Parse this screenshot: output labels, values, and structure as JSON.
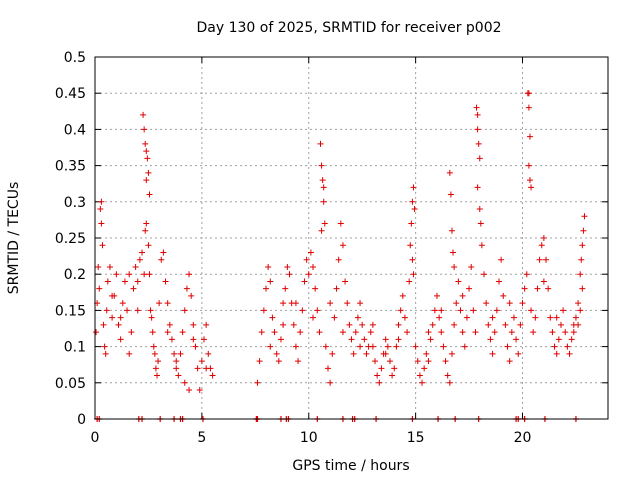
{
  "chart_data": {
    "type": "scatter",
    "title": "Day 130 of 2025, SRMTID for receiver p002",
    "xlabel": "GPS time / hours",
    "ylabel": "SRMTID / TECUs",
    "xlim": [
      0,
      24
    ],
    "ylim": [
      0,
      0.5
    ],
    "x_ticks": [
      0,
      5,
      10,
      15,
      20
    ],
    "x_tick_labels": [
      "0",
      "5",
      "10",
      "15",
      "20"
    ],
    "y_ticks": [
      0,
      0.05,
      0.1,
      0.15,
      0.2,
      0.25,
      0.3,
      0.35,
      0.4,
      0.45,
      0.5
    ],
    "y_tick_labels": [
      "0",
      "0.05",
      "0.1",
      "0.15",
      "0.2",
      "0.25",
      "0.3",
      "0.35",
      "0.4",
      "0.45",
      "0.5"
    ],
    "grid": true,
    "marker": "plus",
    "series_color": "#e00000",
    "series": [
      {
        "name": "SRMTID",
        "points": [
          [
            0.05,
            0.12
          ],
          [
            0.1,
            0.16
          ],
          [
            0.15,
            0.21
          ],
          [
            0.2,
            0.18
          ],
          [
            0.25,
            0.29
          ],
          [
            0.3,
            0.3
          ],
          [
            0.3,
            0.27
          ],
          [
            0.35,
            0.24
          ],
          [
            0.4,
            0.13
          ],
          [
            0.45,
            0.1
          ],
          [
            0.5,
            0.09
          ],
          [
            0.55,
            0.15
          ],
          [
            0.6,
            0.19
          ],
          [
            0.7,
            0.21
          ],
          [
            0.8,
            0.14
          ],
          [
            0.9,
            0.17
          ],
          [
            1.0,
            0.2
          ],
          [
            1.1,
            0.13
          ],
          [
            1.2,
            0.11
          ],
          [
            1.3,
            0.16
          ],
          [
            1.4,
            0.19
          ],
          [
            1.5,
            0.15
          ],
          [
            1.6,
            0.09
          ],
          [
            1.7,
            0.12
          ],
          [
            1.8,
            0.18
          ],
          [
            1.9,
            0.21
          ],
          [
            2.0,
            0.15
          ],
          [
            2.1,
            0.22
          ],
          [
            2.2,
            0.23
          ],
          [
            2.3,
            0.2
          ],
          [
            2.35,
            0.26
          ],
          [
            2.4,
            0.27
          ],
          [
            2.5,
            0.24
          ],
          [
            2.55,
            0.2
          ],
          [
            2.6,
            0.15
          ],
          [
            2.65,
            0.14
          ],
          [
            2.7,
            0.12
          ],
          [
            2.75,
            0.1
          ],
          [
            2.8,
            0.09
          ],
          [
            2.85,
            0.07
          ],
          [
            2.25,
            0.42
          ],
          [
            2.3,
            0.4
          ],
          [
            2.35,
            0.38
          ],
          [
            2.4,
            0.37
          ],
          [
            2.45,
            0.36
          ],
          [
            2.5,
            0.34
          ],
          [
            2.55,
            0.31
          ],
          [
            2.4,
            0.33
          ],
          [
            2.9,
            0.06
          ],
          [
            2.95,
            0.08
          ],
          [
            3.0,
            0.16
          ],
          [
            3.1,
            0.22
          ],
          [
            3.2,
            0.23
          ],
          [
            3.3,
            0.19
          ],
          [
            3.4,
            0.16
          ],
          [
            3.5,
            0.13
          ],
          [
            3.6,
            0.11
          ],
          [
            3.7,
            0.09
          ],
          [
            3.8,
            0.07
          ],
          [
            3.9,
            0.06
          ],
          [
            4.0,
            0.09
          ],
          [
            4.1,
            0.12
          ],
          [
            4.2,
            0.15
          ],
          [
            4.3,
            0.18
          ],
          [
            4.4,
            0.2
          ],
          [
            4.5,
            0.17
          ],
          [
            4.6,
            0.13
          ],
          [
            4.7,
            0.1
          ],
          [
            4.8,
            0.07
          ],
          [
            4.9,
            0.04
          ],
          [
            5.0,
            0.08
          ],
          [
            5.1,
            0.11
          ],
          [
            5.2,
            0.13
          ],
          [
            5.3,
            0.09
          ],
          [
            5.4,
            0.07
          ],
          [
            5.5,
            0.06
          ],
          [
            4.2,
            0.05
          ],
          [
            4.4,
            0.04
          ],
          [
            7.6,
            0.05
          ],
          [
            7.7,
            0.08
          ],
          [
            7.8,
            0.12
          ],
          [
            7.9,
            0.15
          ],
          [
            8.0,
            0.18
          ],
          [
            8.1,
            0.21
          ],
          [
            8.2,
            0.19
          ],
          [
            8.3,
            0.14
          ],
          [
            8.4,
            0.12
          ],
          [
            8.5,
            0.09
          ],
          [
            8.6,
            0.08
          ],
          [
            8.7,
            0.11
          ],
          [
            8.8,
            0.16
          ],
          [
            8.9,
            0.18
          ],
          [
            9.0,
            0.21
          ],
          [
            9.1,
            0.2
          ],
          [
            9.2,
            0.16
          ],
          [
            9.3,
            0.13
          ],
          [
            9.4,
            0.1
          ],
          [
            9.5,
            0.08
          ],
          [
            9.6,
            0.12
          ],
          [
            9.7,
            0.15
          ],
          [
            9.8,
            0.19
          ],
          [
            9.9,
            0.22
          ],
          [
            10.0,
            0.2
          ],
          [
            10.1,
            0.23
          ],
          [
            10.2,
            0.21
          ],
          [
            10.3,
            0.18
          ],
          [
            10.4,
            0.15
          ],
          [
            10.5,
            0.12
          ],
          [
            10.55,
            0.38
          ],
          [
            10.6,
            0.35
          ],
          [
            10.65,
            0.33
          ],
          [
            10.7,
            0.3
          ],
          [
            10.75,
            0.27
          ],
          [
            10.6,
            0.26
          ],
          [
            10.7,
            0.32
          ],
          [
            10.8,
            0.1
          ],
          [
            10.9,
            0.07
          ],
          [
            11.0,
            0.05
          ],
          [
            11.1,
            0.09
          ],
          [
            11.2,
            0.14
          ],
          [
            11.3,
            0.18
          ],
          [
            11.4,
            0.22
          ],
          [
            11.5,
            0.27
          ],
          [
            11.6,
            0.24
          ],
          [
            11.7,
            0.19
          ],
          [
            11.8,
            0.16
          ],
          [
            11.9,
            0.13
          ],
          [
            12.0,
            0.11
          ],
          [
            12.1,
            0.09
          ],
          [
            12.2,
            0.12
          ],
          [
            12.3,
            0.14
          ],
          [
            12.4,
            0.16
          ],
          [
            12.5,
            0.13
          ],
          [
            12.6,
            0.11
          ],
          [
            12.7,
            0.09
          ],
          [
            12.8,
            0.1
          ],
          [
            12.9,
            0.12
          ],
          [
            13.0,
            0.1
          ],
          [
            13.1,
            0.08
          ],
          [
            13.2,
            0.06
          ],
          [
            13.3,
            0.05
          ],
          [
            13.4,
            0.07
          ],
          [
            13.5,
            0.09
          ],
          [
            13.6,
            0.11
          ],
          [
            13.7,
            0.1
          ],
          [
            13.8,
            0.08
          ],
          [
            13.9,
            0.06
          ],
          [
            14.0,
            0.07
          ],
          [
            14.1,
            0.1
          ],
          [
            14.2,
            0.13
          ],
          [
            14.3,
            0.15
          ],
          [
            14.4,
            0.17
          ],
          [
            14.5,
            0.14
          ],
          [
            14.6,
            0.12
          ],
          [
            14.7,
            0.19
          ],
          [
            14.75,
            0.24
          ],
          [
            14.8,
            0.27
          ],
          [
            14.85,
            0.3
          ],
          [
            14.9,
            0.32
          ],
          [
            14.95,
            0.29
          ],
          [
            14.85,
            0.22
          ],
          [
            14.9,
            0.2
          ],
          [
            15.0,
            0.1
          ],
          [
            15.1,
            0.08
          ],
          [
            15.2,
            0.06
          ],
          [
            15.3,
            0.05
          ],
          [
            15.4,
            0.07
          ],
          [
            15.5,
            0.09
          ],
          [
            15.6,
            0.12
          ],
          [
            15.7,
            0.11
          ],
          [
            15.8,
            0.13
          ],
          [
            15.9,
            0.15
          ],
          [
            16.0,
            0.17
          ],
          [
            16.1,
            0.14
          ],
          [
            16.2,
            0.12
          ],
          [
            16.3,
            0.1
          ],
          [
            16.4,
            0.08
          ],
          [
            16.5,
            0.06
          ],
          [
            16.6,
            0.05
          ],
          [
            16.7,
            0.09
          ],
          [
            16.8,
            0.13
          ],
          [
            16.9,
            0.16
          ],
          [
            16.6,
            0.34
          ],
          [
            16.65,
            0.31
          ],
          [
            16.7,
            0.26
          ],
          [
            16.75,
            0.23
          ],
          [
            16.8,
            0.21
          ],
          [
            17.0,
            0.19
          ],
          [
            17.1,
            0.15
          ],
          [
            17.2,
            0.12
          ],
          [
            17.3,
            0.1
          ],
          [
            17.4,
            0.14
          ],
          [
            17.5,
            0.18
          ],
          [
            17.6,
            0.21
          ],
          [
            17.7,
            0.15
          ],
          [
            17.8,
            0.12
          ],
          [
            17.85,
            0.43
          ],
          [
            17.9,
            0.42
          ],
          [
            17.9,
            0.4
          ],
          [
            17.95,
            0.38
          ],
          [
            18.0,
            0.36
          ],
          [
            17.9,
            0.32
          ],
          [
            18.0,
            0.29
          ],
          [
            18.05,
            0.27
          ],
          [
            18.1,
            0.24
          ],
          [
            18.2,
            0.2
          ],
          [
            18.3,
            0.16
          ],
          [
            18.4,
            0.13
          ],
          [
            18.5,
            0.11
          ],
          [
            18.6,
            0.09
          ],
          [
            18.7,
            0.12
          ],
          [
            18.8,
            0.15
          ],
          [
            18.9,
            0.19
          ],
          [
            19.0,
            0.22
          ],
          [
            19.1,
            0.17
          ],
          [
            19.2,
            0.13
          ],
          [
            19.3,
            0.1
          ],
          [
            19.4,
            0.08
          ],
          [
            19.5,
            0.12
          ],
          [
            19.6,
            0.14
          ],
          [
            19.7,
            0.11
          ],
          [
            19.8,
            0.09
          ],
          [
            19.9,
            0.13
          ],
          [
            20.0,
            0.16
          ],
          [
            20.1,
            0.18
          ],
          [
            20.2,
            0.2
          ],
          [
            20.25,
            0.45
          ],
          [
            20.3,
            0.45
          ],
          [
            20.3,
            0.43
          ],
          [
            20.35,
            0.39
          ],
          [
            20.3,
            0.35
          ],
          [
            20.35,
            0.33
          ],
          [
            20.4,
            0.32
          ],
          [
            20.4,
            0.15
          ],
          [
            20.5,
            0.12
          ],
          [
            20.6,
            0.14
          ],
          [
            20.7,
            0.18
          ],
          [
            20.8,
            0.22
          ],
          [
            20.9,
            0.24
          ],
          [
            21.0,
            0.25
          ],
          [
            21.1,
            0.22
          ],
          [
            21.2,
            0.18
          ],
          [
            21.3,
            0.14
          ],
          [
            21.4,
            0.12
          ],
          [
            21.5,
            0.1
          ],
          [
            21.6,
            0.09
          ],
          [
            21.7,
            0.11
          ],
          [
            21.8,
            0.13
          ],
          [
            21.9,
            0.15
          ],
          [
            22.0,
            0.12
          ],
          [
            22.1,
            0.1
          ],
          [
            22.2,
            0.09
          ],
          [
            22.3,
            0.11
          ],
          [
            22.4,
            0.13
          ],
          [
            22.5,
            0.14
          ],
          [
            22.6,
            0.16
          ],
          [
            22.7,
            0.2
          ],
          [
            22.75,
            0.22
          ],
          [
            22.8,
            0.24
          ],
          [
            22.85,
            0.26
          ],
          [
            22.9,
            0.28
          ],
          [
            22.8,
            0.18
          ],
          [
            22.7,
            0.15
          ],
          [
            22.6,
            0.13
          ],
          [
            0.8,
            0.17
          ],
          [
            1.2,
            0.14
          ],
          [
            1.6,
            0.2
          ],
          [
            2.0,
            0.19
          ],
          [
            3.4,
            0.12
          ],
          [
            3.8,
            0.08
          ],
          [
            4.6,
            0.11
          ],
          [
            5.2,
            0.07
          ],
          [
            8.2,
            0.1
          ],
          [
            8.8,
            0.13
          ],
          [
            9.4,
            0.16
          ],
          [
            10.2,
            0.14
          ],
          [
            11.0,
            0.16
          ],
          [
            11.6,
            0.12
          ],
          [
            12.4,
            0.1
          ],
          [
            13.0,
            0.13
          ],
          [
            13.6,
            0.09
          ],
          [
            14.2,
            0.11
          ],
          [
            15.6,
            0.08
          ],
          [
            16.2,
            0.15
          ],
          [
            17.2,
            0.17
          ],
          [
            18.6,
            0.14
          ],
          [
            19.4,
            0.16
          ],
          [
            21.0,
            0.19
          ],
          [
            21.6,
            0.14
          ],
          [
            22.4,
            0.12
          ]
        ],
        "zero_markers_x": [
          0.1,
          0.2,
          2.05,
          2.2,
          3.05,
          3.7,
          4.0,
          4.1,
          5.05,
          7.55,
          7.6,
          8.7,
          8.95,
          9.05,
          10.4,
          11.6,
          12.05,
          12.15,
          13.15,
          14.85,
          16.05,
          16.85,
          17.95,
          19.7,
          19.8,
          20.1,
          21.05,
          22.5
        ]
      }
    ]
  }
}
